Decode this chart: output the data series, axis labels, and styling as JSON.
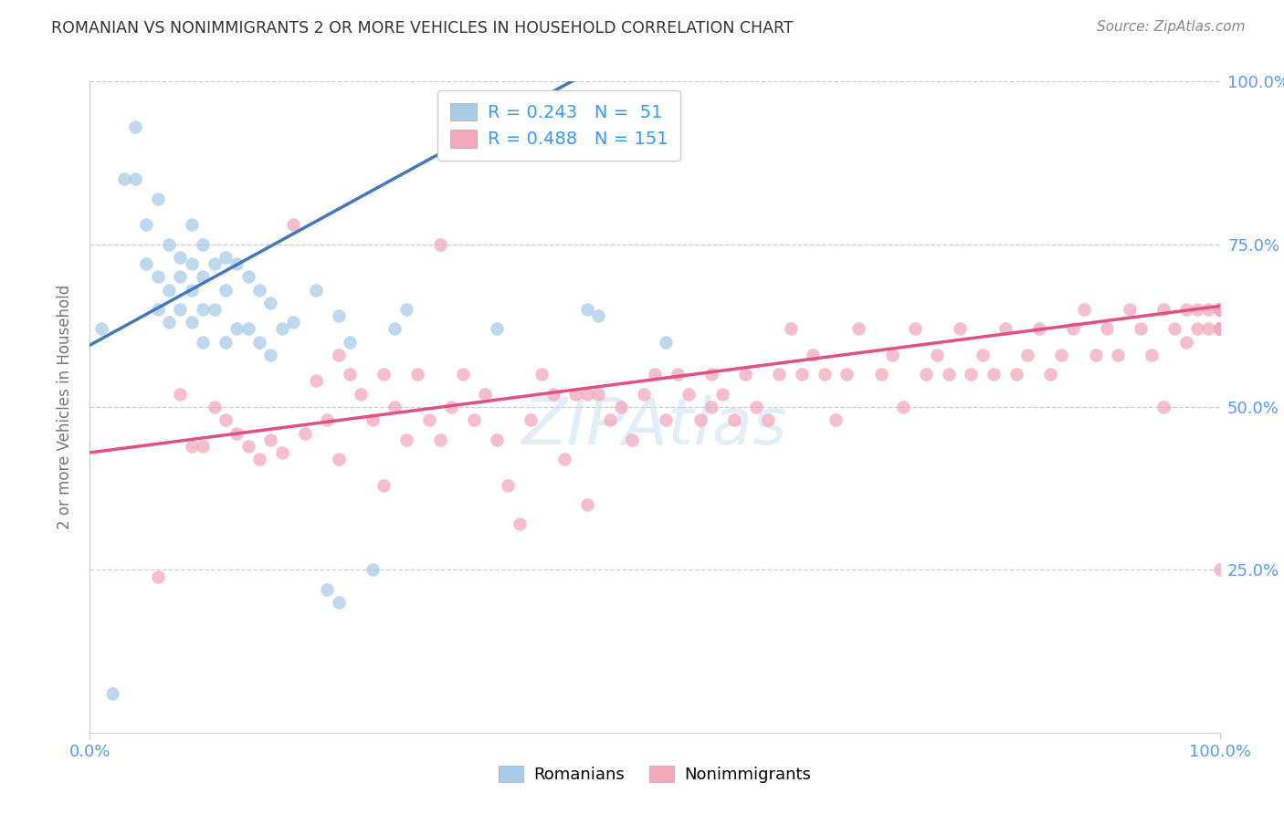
{
  "title": "ROMANIAN VS NONIMMIGRANTS 2 OR MORE VEHICLES IN HOUSEHOLD CORRELATION CHART",
  "source": "Source: ZipAtlas.com",
  "ylabel": "2 or more Vehicles in Household",
  "watermark": "ZIPAtlas",
  "romanian_R": 0.243,
  "romanian_N": 51,
  "nonimmigrant_R": 0.488,
  "nonimmigrant_N": 151,
  "xlim": [
    0.0,
    1.0
  ],
  "ylim": [
    0.0,
    1.0
  ],
  "ytick_vals": [
    0.0,
    0.25,
    0.5,
    0.75,
    1.0
  ],
  "ytick_labels_right": [
    "",
    "25.0%",
    "50.0%",
    "75.0%",
    "100.0%"
  ],
  "xtick_labels": [
    "0.0%",
    "100.0%"
  ],
  "blue_scatter": "#a8cce8",
  "pink_scatter": "#f4a8bc",
  "line_blue": "#4477bb",
  "line_pink": "#e05080",
  "legend_text_color": "#3399ff",
  "title_color": "#333333",
  "source_color": "#888888",
  "axis_tick_color": "#5599ff",
  "ylabel_color": "#777777",
  "grid_color": "#cccccc",
  "background": "#ffffff",
  "rom_line_intercept": 0.595,
  "rom_line_slope": 0.95,
  "nonimm_line_intercept": 0.43,
  "nonimm_line_slope": 0.225,
  "rom_x": [
    0.01,
    0.02,
    0.03,
    0.04,
    0.04,
    0.05,
    0.05,
    0.06,
    0.06,
    0.06,
    0.07,
    0.07,
    0.07,
    0.08,
    0.08,
    0.08,
    0.09,
    0.09,
    0.09,
    0.09,
    0.1,
    0.1,
    0.1,
    0.1,
    0.11,
    0.11,
    0.12,
    0.12,
    0.12,
    0.13,
    0.13,
    0.14,
    0.14,
    0.15,
    0.15,
    0.16,
    0.16,
    0.17,
    0.18,
    0.2,
    0.21,
    0.22,
    0.22,
    0.23,
    0.25,
    0.27,
    0.28,
    0.36,
    0.44,
    0.45,
    0.51
  ],
  "rom_y": [
    0.62,
    0.06,
    0.85,
    0.93,
    0.85,
    0.78,
    0.72,
    0.82,
    0.7,
    0.65,
    0.75,
    0.68,
    0.63,
    0.73,
    0.7,
    0.65,
    0.78,
    0.72,
    0.68,
    0.63,
    0.75,
    0.7,
    0.65,
    0.6,
    0.72,
    0.65,
    0.73,
    0.68,
    0.6,
    0.72,
    0.62,
    0.7,
    0.62,
    0.68,
    0.6,
    0.66,
    0.58,
    0.62,
    0.63,
    0.68,
    0.22,
    0.2,
    0.64,
    0.6,
    0.25,
    0.62,
    0.65,
    0.62,
    0.65,
    0.64,
    0.6
  ],
  "nonimm_x": [
    0.06,
    0.08,
    0.09,
    0.1,
    0.11,
    0.12,
    0.13,
    0.14,
    0.15,
    0.16,
    0.17,
    0.18,
    0.19,
    0.2,
    0.21,
    0.22,
    0.22,
    0.23,
    0.24,
    0.25,
    0.26,
    0.26,
    0.27,
    0.28,
    0.29,
    0.3,
    0.31,
    0.31,
    0.32,
    0.33,
    0.34,
    0.35,
    0.36,
    0.37,
    0.38,
    0.39,
    0.4,
    0.41,
    0.42,
    0.43,
    0.44,
    0.44,
    0.45,
    0.46,
    0.47,
    0.48,
    0.49,
    0.5,
    0.51,
    0.52,
    0.53,
    0.54,
    0.55,
    0.55,
    0.56,
    0.57,
    0.58,
    0.59,
    0.6,
    0.61,
    0.62,
    0.63,
    0.64,
    0.65,
    0.66,
    0.67,
    0.68,
    0.7,
    0.71,
    0.72,
    0.73,
    0.74,
    0.75,
    0.76,
    0.77,
    0.78,
    0.79,
    0.8,
    0.81,
    0.82,
    0.83,
    0.84,
    0.85,
    0.86,
    0.87,
    0.88,
    0.89,
    0.9,
    0.91,
    0.92,
    0.93,
    0.94,
    0.95,
    0.95,
    0.96,
    0.97,
    0.97,
    0.98,
    0.98,
    0.99,
    0.99,
    1.0,
    1.0,
    1.0,
    1.0,
    1.0,
    1.0,
    1.0,
    1.0,
    1.0,
    1.0,
    1.0,
    1.0,
    1.0,
    1.0,
    1.0,
    1.0,
    1.0,
    1.0,
    1.0,
    1.0,
    1.0,
    1.0,
    1.0,
    1.0,
    1.0,
    1.0,
    1.0,
    1.0,
    1.0,
    1.0,
    1.0,
    1.0,
    1.0,
    1.0,
    1.0,
    1.0,
    1.0,
    1.0,
    1.0,
    1.0,
    1.0,
    1.0,
    1.0,
    1.0,
    1.0,
    1.0,
    1.0
  ],
  "nonimm_y": [
    0.24,
    0.52,
    0.44,
    0.44,
    0.5,
    0.48,
    0.46,
    0.44,
    0.42,
    0.45,
    0.43,
    0.78,
    0.46,
    0.54,
    0.48,
    0.58,
    0.42,
    0.55,
    0.52,
    0.48,
    0.55,
    0.38,
    0.5,
    0.45,
    0.55,
    0.48,
    0.45,
    0.75,
    0.5,
    0.55,
    0.48,
    0.52,
    0.45,
    0.38,
    0.32,
    0.48,
    0.55,
    0.52,
    0.42,
    0.52,
    0.35,
    0.52,
    0.52,
    0.48,
    0.5,
    0.45,
    0.52,
    0.55,
    0.48,
    0.55,
    0.52,
    0.48,
    0.5,
    0.55,
    0.52,
    0.48,
    0.55,
    0.5,
    0.48,
    0.55,
    0.62,
    0.55,
    0.58,
    0.55,
    0.48,
    0.55,
    0.62,
    0.55,
    0.58,
    0.5,
    0.62,
    0.55,
    0.58,
    0.55,
    0.62,
    0.55,
    0.58,
    0.55,
    0.62,
    0.55,
    0.58,
    0.62,
    0.55,
    0.58,
    0.62,
    0.65,
    0.58,
    0.62,
    0.58,
    0.65,
    0.62,
    0.58,
    0.65,
    0.5,
    0.62,
    0.65,
    0.6,
    0.62,
    0.65,
    0.62,
    0.65,
    0.62,
    0.65,
    0.62,
    0.65,
    0.62,
    0.65,
    0.62,
    0.65,
    0.25,
    0.65,
    0.62,
    0.65,
    0.62,
    0.65,
    0.62,
    0.65,
    0.62,
    0.65,
    0.62,
    0.65,
    0.62,
    0.65,
    0.62,
    0.65,
    0.62,
    0.65,
    0.62,
    0.65,
    0.62,
    0.65,
    0.62,
    0.65,
    0.62,
    0.65,
    0.62,
    0.65,
    0.62,
    0.65,
    0.62,
    0.65,
    0.62,
    0.65,
    0.62,
    0.65,
    0.62,
    0.65,
    0.62
  ]
}
